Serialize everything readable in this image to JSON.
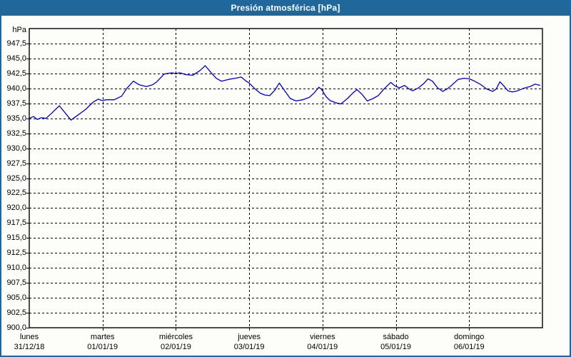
{
  "window": {
    "title": "Presión atmosférica [hPa]"
  },
  "colors": {
    "titlebar": "#20689b",
    "window_border": "#20689b",
    "background": "#fdfdfa",
    "grid": "#000000",
    "axis": "#000000",
    "line": "#0000b0",
    "text": "#000000",
    "title_text": "#ffffff"
  },
  "chart_data": {
    "type": "line",
    "title": "Presión atmosférica [hPa]",
    "unit_label": "hPa",
    "ylabel": "hPa",
    "xlabel": "",
    "ylim": [
      900,
      950
    ],
    "ytick_step": 2.5,
    "ytick_labels": [
      "947,5",
      "945,0",
      "942,5",
      "940,0",
      "937,5",
      "935,0",
      "932,5",
      "930,0",
      "927,5",
      "925,0",
      "922,5",
      "920,0",
      "917,5",
      "915,0",
      "912,5",
      "910,0",
      "907,5",
      "905,0",
      "902,5",
      "900,0"
    ],
    "xlim_days": [
      0,
      7
    ],
    "x_days": [
      {
        "day": "lunes",
        "date": "31/12/18"
      },
      {
        "day": "martes",
        "date": "01/01/19"
      },
      {
        "day": "miércoles",
        "date": "02/01/19"
      },
      {
        "day": "jueves",
        "date": "03/01/19"
      },
      {
        "day": "viernes",
        "date": "04/01/19"
      },
      {
        "day": "sábado",
        "date": "05/01/19"
      },
      {
        "day": "domingo",
        "date": "06/01/19"
      }
    ],
    "grid": true,
    "legend_position": "none",
    "series": [
      {
        "name": "Presión atmosférica",
        "points": [
          [
            0.0,
            935.0
          ],
          [
            0.06,
            935.3
          ],
          [
            0.11,
            934.8
          ],
          [
            0.16,
            935.1
          ],
          [
            0.23,
            935.0
          ],
          [
            0.31,
            935.9
          ],
          [
            0.41,
            937.1
          ],
          [
            0.51,
            935.6
          ],
          [
            0.57,
            934.7
          ],
          [
            0.67,
            935.6
          ],
          [
            0.77,
            936.5
          ],
          [
            0.87,
            937.7
          ],
          [
            0.94,
            938.2
          ],
          [
            0.99,
            938.0
          ],
          [
            1.06,
            938.1
          ],
          [
            1.16,
            938.1
          ],
          [
            1.26,
            938.7
          ],
          [
            1.33,
            940.0
          ],
          [
            1.42,
            941.2
          ],
          [
            1.5,
            940.6
          ],
          [
            1.6,
            940.3
          ],
          [
            1.68,
            940.6
          ],
          [
            1.74,
            941.1
          ],
          [
            1.84,
            942.4
          ],
          [
            1.94,
            942.6
          ],
          [
            2.0,
            942.5
          ],
          [
            2.06,
            942.6
          ],
          [
            2.13,
            942.3
          ],
          [
            2.23,
            942.2
          ],
          [
            2.33,
            943.0
          ],
          [
            2.4,
            943.8
          ],
          [
            2.49,
            942.5
          ],
          [
            2.55,
            941.7
          ],
          [
            2.62,
            941.2
          ],
          [
            2.72,
            941.5
          ],
          [
            2.81,
            941.7
          ],
          [
            2.89,
            941.9
          ],
          [
            2.96,
            941.2
          ],
          [
            3.0,
            940.9
          ],
          [
            3.08,
            939.9
          ],
          [
            3.15,
            939.2
          ],
          [
            3.21,
            938.9
          ],
          [
            3.28,
            938.8
          ],
          [
            3.35,
            939.7
          ],
          [
            3.41,
            940.9
          ],
          [
            3.49,
            939.5
          ],
          [
            3.56,
            938.3
          ],
          [
            3.64,
            937.9
          ],
          [
            3.73,
            938.1
          ],
          [
            3.82,
            938.5
          ],
          [
            3.89,
            939.3
          ],
          [
            3.95,
            940.2
          ],
          [
            3.99,
            939.8
          ],
          [
            4.05,
            938.6
          ],
          [
            4.1,
            938.0
          ],
          [
            4.18,
            937.6
          ],
          [
            4.25,
            937.4
          ],
          [
            4.34,
            938.3
          ],
          [
            4.42,
            939.3
          ],
          [
            4.47,
            939.8
          ],
          [
            4.54,
            939.0
          ],
          [
            4.61,
            937.9
          ],
          [
            4.69,
            938.3
          ],
          [
            4.76,
            938.8
          ],
          [
            4.84,
            939.9
          ],
          [
            4.93,
            941.0
          ],
          [
            4.99,
            940.4
          ],
          [
            5.05,
            940.1
          ],
          [
            5.12,
            940.5
          ],
          [
            5.18,
            939.9
          ],
          [
            5.23,
            939.6
          ],
          [
            5.31,
            940.1
          ],
          [
            5.38,
            940.8
          ],
          [
            5.44,
            941.6
          ],
          [
            5.5,
            941.2
          ],
          [
            5.57,
            940.1
          ],
          [
            5.64,
            939.5
          ],
          [
            5.7,
            939.9
          ],
          [
            5.76,
            940.5
          ],
          [
            5.85,
            941.5
          ],
          [
            5.93,
            941.7
          ],
          [
            6.0,
            941.6
          ],
          [
            6.06,
            941.3
          ],
          [
            6.15,
            940.7
          ],
          [
            6.24,
            939.9
          ],
          [
            6.32,
            939.5
          ],
          [
            6.37,
            939.9
          ],
          [
            6.42,
            941.1
          ],
          [
            6.46,
            940.6
          ],
          [
            6.53,
            939.6
          ],
          [
            6.59,
            939.4
          ],
          [
            6.66,
            939.6
          ],
          [
            6.74,
            940.0
          ],
          [
            6.83,
            940.3
          ],
          [
            6.9,
            940.7
          ],
          [
            6.97,
            940.5
          ]
        ]
      }
    ]
  }
}
